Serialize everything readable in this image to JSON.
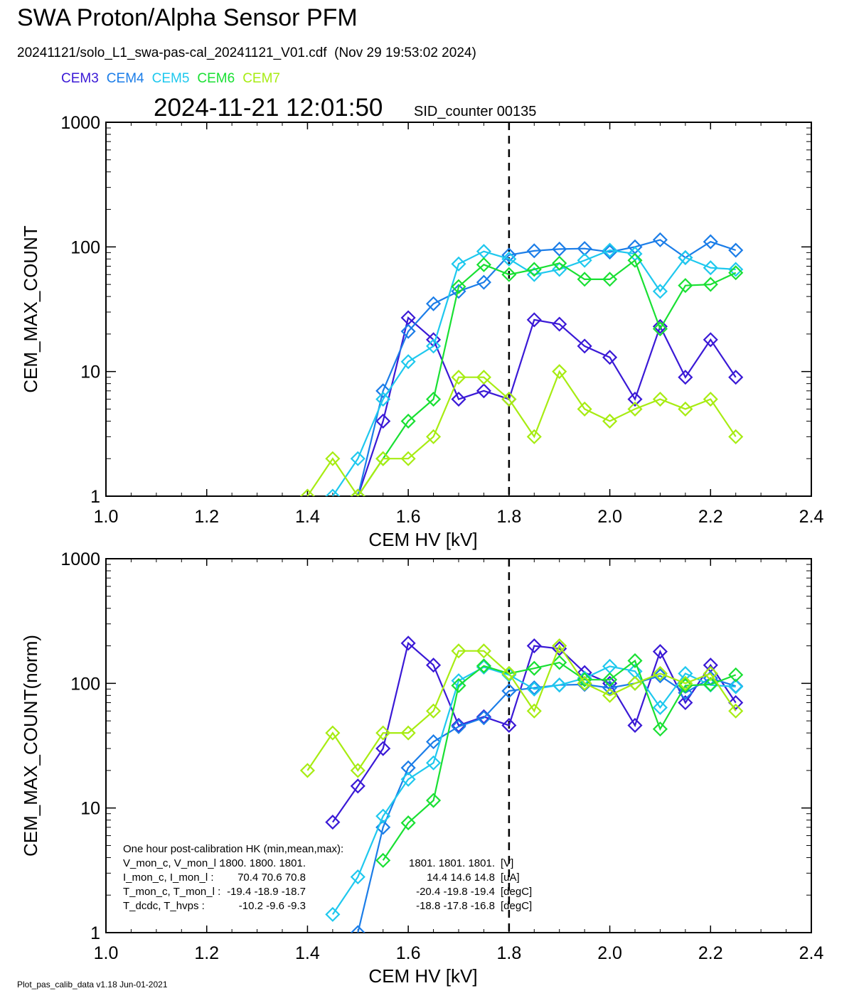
{
  "header": {
    "title": "SWA Proton/Alpha Sensor PFM",
    "subtitle": "20241121/solo_L1_swa-pas-cal_20241121_V01.cdf  (Nov 29 19:53:02 2024)",
    "timestamp": "2024-11-21 12:01:50",
    "sid_counter": "SID_counter 00135"
  },
  "legend": [
    {
      "name": "CEM3",
      "color": "#3a19d6"
    },
    {
      "name": "CEM4",
      "color": "#1b7de8"
    },
    {
      "name": "CEM5",
      "color": "#1ec8ee"
    },
    {
      "name": "CEM6",
      "color": "#19e033"
    },
    {
      "name": "CEM7",
      "color": "#a7ec12"
    }
  ],
  "footer": "Plot_pas_calib_data v1.18 Jun-01-2021",
  "hk_text": {
    "title": "One hour post-calibration HK (min,mean,max):",
    "rows": [
      {
        "label": "V_mon_c, V_mon_l :",
        "c": "1800.  1800.  1801.",
        "l": "1801.  1801.  1801.",
        "unit": "[V]"
      },
      {
        "label": "I_mon_c,  I_mon_l :",
        "c": "70.4   70.6   70.8",
        "l": "14.4   14.6   14.8",
        "unit": "[uA]"
      },
      {
        "label": "T_mon_c, T_mon_l :",
        "c": "-19.4  -18.9  -18.7",
        "l": "-20.4  -19.8  -19.4",
        "unit": "[degC]"
      },
      {
        "label": "T_dcdc,    T_hvps :",
        "c": "-10.2   -9.6   -9.3",
        "l": "-18.8  -17.8  -16.8",
        "unit": "[degC]"
      }
    ]
  },
  "chart_data": [
    {
      "type": "line",
      "title": "",
      "xlabel": "CEM HV [kV]",
      "ylabel": "CEM_MAX_COUNT",
      "xlim": [
        1.0,
        2.4
      ],
      "ylim": [
        1,
        1000
      ],
      "yscale": "log",
      "xticks": [
        "1.0",
        "1.2",
        "1.4",
        "1.6",
        "1.8",
        "2.0",
        "2.2",
        "2.4"
      ],
      "yticks": [
        "1",
        "10",
        "100",
        "1000"
      ],
      "vline": 1.8,
      "series": [
        {
          "name": "CEM3",
          "color": "#3a19d6",
          "x": [
            1.5,
            1.55,
            1.6,
            1.65,
            1.7,
            1.75,
            1.8,
            1.85,
            1.9,
            1.95,
            2.0,
            2.05,
            2.1,
            2.15,
            2.2,
            2.25
          ],
          "y": [
            1,
            4,
            27,
            18,
            6,
            7,
            6,
            26,
            24,
            16,
            13,
            6,
            23,
            9,
            18,
            9
          ]
        },
        {
          "name": "CEM4",
          "color": "#1b7de8",
          "x": [
            1.5,
            1.55,
            1.6,
            1.65,
            1.7,
            1.75,
            1.8,
            1.85,
            1.9,
            1.95,
            2.0,
            2.05,
            2.1,
            2.15,
            2.2,
            2.25
          ],
          "y": [
            1,
            7,
            21,
            35,
            44,
            52,
            86,
            93,
            96,
            97,
            91,
            100,
            114,
            82,
            110,
            94
          ]
        },
        {
          "name": "CEM5",
          "color": "#1ec8ee",
          "x": [
            1.45,
            1.5,
            1.55,
            1.6,
            1.65,
            1.7,
            1.75,
            1.8,
            1.85,
            1.9,
            1.95,
            2.0,
            2.05,
            2.1,
            2.15,
            2.2,
            2.25
          ],
          "y": [
            1,
            2,
            6,
            12,
            16,
            73,
            92,
            80,
            60,
            66,
            78,
            94,
            88,
            44,
            82,
            68,
            66
          ]
        },
        {
          "name": "CEM6",
          "color": "#19e033",
          "x": [
            1.5,
            1.55,
            1.6,
            1.65,
            1.7,
            1.75,
            1.8,
            1.85,
            1.9,
            1.95,
            2.0,
            2.05,
            2.1,
            2.15,
            2.2,
            2.25
          ],
          "y": [
            1,
            2,
            4,
            6,
            48,
            72,
            60,
            66,
            74,
            55,
            55,
            78,
            22,
            49,
            50,
            62
          ]
        },
        {
          "name": "CEM7",
          "color": "#a7ec12",
          "x": [
            1.4,
            1.45,
            1.5,
            1.55,
            1.6,
            1.65,
            1.7,
            1.75,
            1.8,
            1.85,
            1.9,
            1.95,
            2.0,
            2.05,
            2.1,
            2.15,
            2.2,
            2.25
          ],
          "y": [
            1,
            2,
            1,
            2,
            2,
            3,
            9,
            9,
            6,
            3,
            10,
            5,
            4,
            5,
            6,
            5,
            6,
            3
          ]
        }
      ]
    },
    {
      "type": "line",
      "title": "",
      "xlabel": "CEM HV [kV]",
      "ylabel": "CEM_MAX_COUNT(norm)",
      "xlim": [
        1.0,
        2.4
      ],
      "ylim": [
        1,
        1000
      ],
      "yscale": "log",
      "xticks": [
        "1.0",
        "1.2",
        "1.4",
        "1.6",
        "1.8",
        "2.0",
        "2.2",
        "2.4"
      ],
      "yticks": [
        "1",
        "10",
        "100",
        "1000"
      ],
      "vline": 1.8,
      "series": [
        {
          "name": "CEM3",
          "color": "#3a19d6",
          "x": [
            1.45,
            1.5,
            1.55,
            1.6,
            1.65,
            1.7,
            1.75,
            1.8,
            1.85,
            1.9,
            1.95,
            2.0,
            2.05,
            2.1,
            2.15,
            2.2,
            2.25
          ],
          "y": [
            7.7,
            15,
            30,
            210,
            140,
            46,
            54,
            46,
            200,
            190,
            122,
            100,
            46,
            180,
            70,
            140,
            70
          ]
        },
        {
          "name": "CEM4",
          "color": "#1b7de8",
          "x": [
            1.5,
            1.55,
            1.6,
            1.65,
            1.7,
            1.75,
            1.8,
            1.85,
            1.9,
            1.95,
            2.0,
            2.05,
            2.1,
            2.15,
            2.2,
            2.25
          ],
          "y": [
            1,
            7,
            21,
            34,
            45,
            53,
            87,
            92,
            97,
            98,
            92,
            100,
            115,
            84,
            110,
            95
          ]
        },
        {
          "name": "CEM5",
          "color": "#1ec8ee",
          "x": [
            1.45,
            1.5,
            1.55,
            1.6,
            1.65,
            1.7,
            1.75,
            1.8,
            1.85,
            1.9,
            1.95,
            2.0,
            2.05,
            2.1,
            2.15,
            2.2,
            2.25
          ],
          "y": [
            1.4,
            2.8,
            8.6,
            17,
            23,
            105,
            135,
            117,
            90,
            97,
            110,
            137,
            125,
            64,
            120,
            97,
            94
          ]
        },
        {
          "name": "CEM6",
          "color": "#19e033",
          "x": [
            1.55,
            1.6,
            1.65,
            1.7,
            1.75,
            1.8,
            1.85,
            1.9,
            1.95,
            2.0,
            2.05,
            2.1,
            2.15,
            2.2,
            2.25
          ],
          "y": [
            3.8,
            7.6,
            11.5,
            96,
            138,
            120,
            132,
            147,
            107,
            107,
            152,
            43,
            96,
            98,
            117
          ]
        },
        {
          "name": "CEM7",
          "color": "#a7ec12",
          "x": [
            1.4,
            1.45,
            1.5,
            1.55,
            1.6,
            1.65,
            1.7,
            1.75,
            1.8,
            1.85,
            1.9,
            1.95,
            2.0,
            2.05,
            2.1,
            2.15,
            2.2,
            2.25
          ],
          "y": [
            20,
            40,
            20,
            40,
            40,
            60,
            182,
            182,
            120,
            60,
            200,
            100,
            80,
            100,
            120,
            100,
            120,
            60
          ]
        }
      ]
    }
  ]
}
